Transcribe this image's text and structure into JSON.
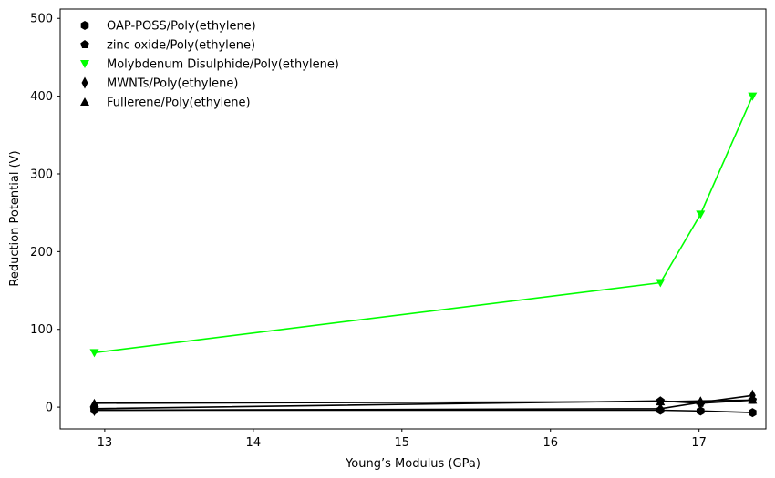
{
  "chart_data": {
    "type": "line",
    "title": "",
    "xlabel": "Young’s Modulus (GPa)",
    "ylabel": "Reduction Potential (V)",
    "xlim": [
      12.7,
      17.45
    ],
    "ylim": [
      -28,
      512
    ],
    "x_ticks": [
      13,
      14,
      15,
      16,
      17
    ],
    "y_ticks": [
      0,
      100,
      200,
      300,
      400,
      500
    ],
    "grid": false,
    "legend_position": "top-left",
    "series": [
      {
        "name": "OAP-POSS/Poly(ethylene)",
        "marker": "hexagon",
        "color": "#000000",
        "x": [
          12.93,
          16.74,
          17.01,
          17.36
        ],
        "y": [
          -4,
          -4,
          -5,
          -7
        ]
      },
      {
        "name": "zinc oxide/Poly(ethylene)",
        "marker": "pentagon",
        "color": "#000000",
        "x": [
          12.93,
          16.74,
          17.01,
          17.36
        ],
        "y": [
          -2,
          8,
          5,
          9
        ]
      },
      {
        "name": "Molybdenum Disulphide/Poly(ethylene)",
        "marker": "triangle-down",
        "color": "#00ff00",
        "x": [
          12.93,
          16.74,
          17.01,
          17.36
        ],
        "y": [
          70,
          160,
          248,
          400
        ]
      },
      {
        "name": "MWNTs/Poly(ethylene)",
        "marker": "diamond",
        "color": "#000000",
        "x": [
          12.93,
          16.74,
          17.01,
          17.36
        ],
        "y": [
          -4,
          -2,
          6,
          15
        ]
      },
      {
        "name": "Fullerene/Poly(ethylene)",
        "marker": "triangle-up",
        "color": "#000000",
        "x": [
          12.93,
          16.74,
          17.01,
          17.36
        ],
        "y": [
          5,
          7,
          8,
          9
        ]
      }
    ]
  }
}
